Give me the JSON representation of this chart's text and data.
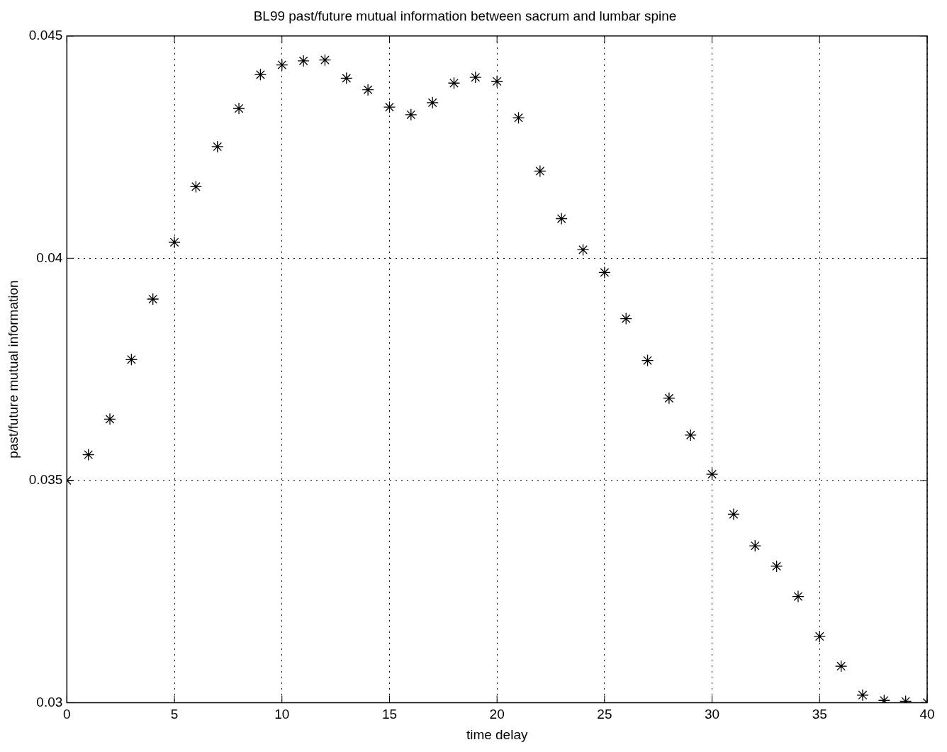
{
  "chart_data": {
    "type": "scatter",
    "title": "BL99 past/future mutual information between sacrum and lumbar spine",
    "xlabel": "time delay",
    "ylabel": "past/future mutual information",
    "x": [
      0,
      1,
      2,
      3,
      4,
      5,
      6,
      7,
      8,
      9,
      10,
      11,
      12,
      13,
      14,
      15,
      16,
      17,
      18,
      19,
      20,
      21,
      22,
      23,
      24,
      25,
      26,
      27,
      28,
      29,
      30,
      31,
      32,
      33,
      34,
      35,
      36,
      37,
      38,
      39,
      40
    ],
    "series": [
      {
        "color": "#000000",
        "values": [
          0.035,
          0.03558,
          0.03638,
          0.03772,
          0.03908,
          0.04036,
          0.04161,
          0.04251,
          0.04337,
          0.04413,
          0.04435,
          0.04444,
          0.04446,
          0.04405,
          0.04379,
          0.0434,
          0.04323,
          0.0435,
          0.04394,
          0.04407,
          0.04398,
          0.04316,
          0.04196,
          0.04089,
          0.04019,
          0.03968,
          0.03864,
          0.0377,
          0.03685,
          0.03602,
          0.03514,
          0.03424,
          0.03353,
          0.03307,
          0.03239,
          0.03149,
          0.03082,
          0.03017,
          0.03005,
          0.03003,
          0.03
        ]
      }
    ],
    "xlim": [
      0,
      40
    ],
    "xticks": [
      0,
      5,
      10,
      15,
      20,
      25,
      30,
      35,
      40
    ],
    "ylim": [
      0.03,
      0.045
    ],
    "yticks": [
      0.03,
      0.035,
      0.04,
      0.045
    ],
    "grid": true,
    "marker": "cross",
    "legend": false
  }
}
